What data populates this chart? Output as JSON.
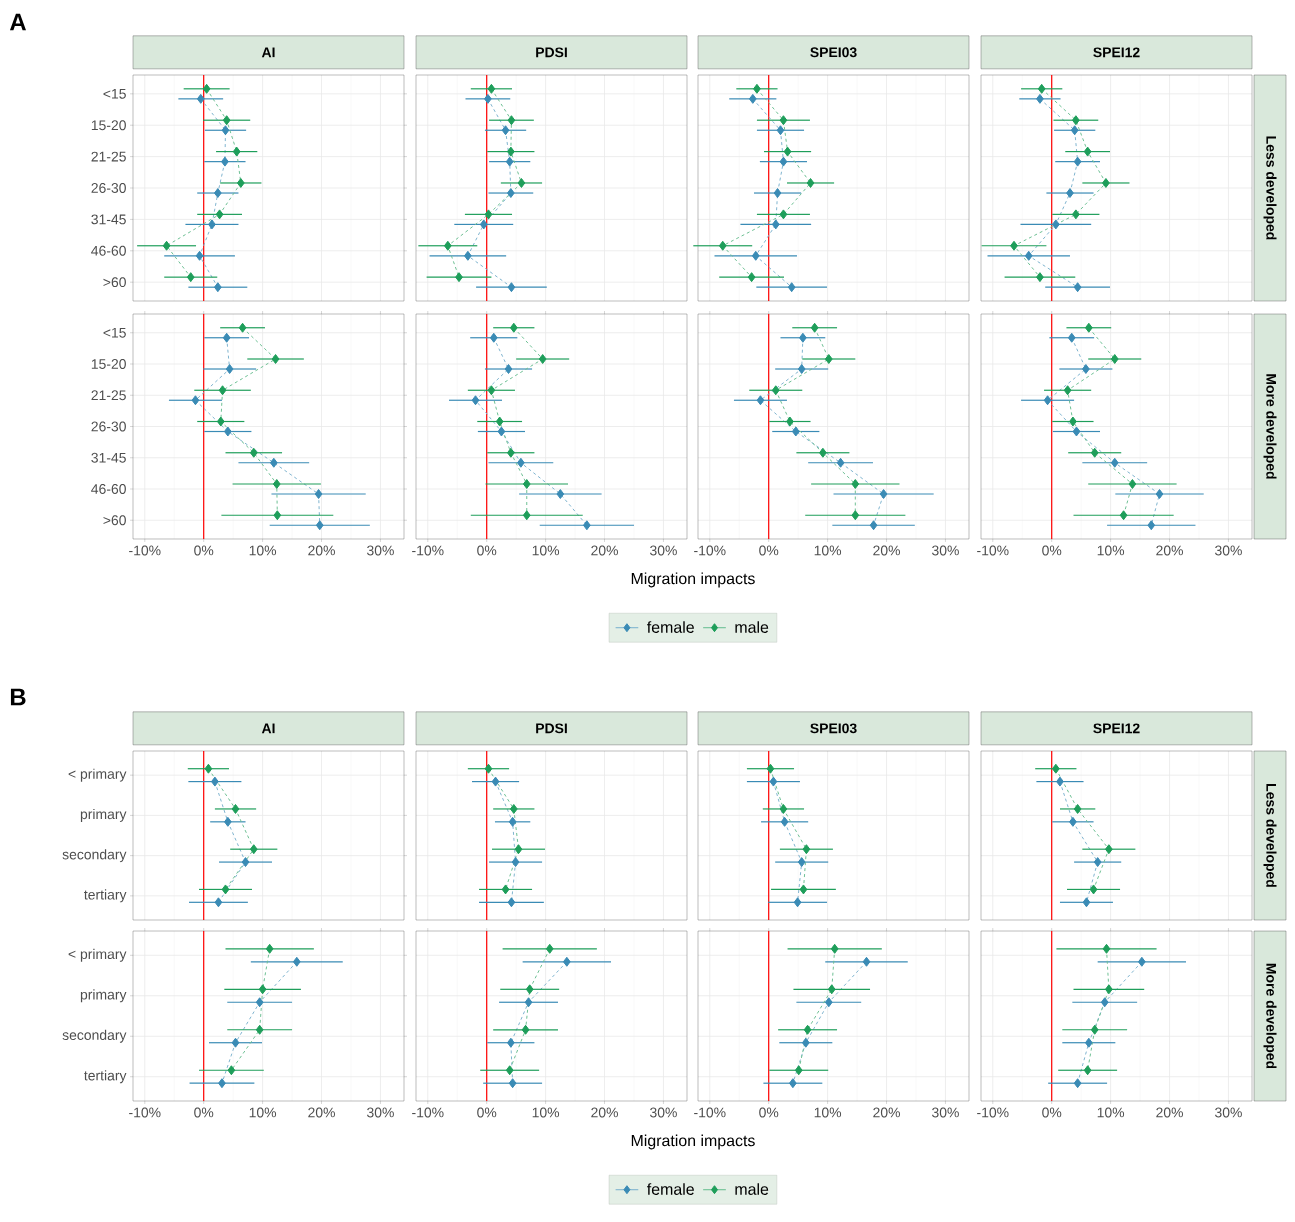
{
  "chart_data": [
    {
      "type": "line",
      "orientation": "horizontal",
      "title": "AI",
      "annotations": [
        "A"
      ],
      "tick_labels": "y",
      "categories": [
        "<15",
        "15-20",
        "21-25",
        "26-30",
        "31-45",
        "46-60",
        ">60"
      ],
      "xlim": [
        -12,
        34
      ],
      "xticks": [
        {
          "value": -10,
          "label": null
        },
        {
          "value": 0,
          "label": null
        },
        {
          "value": 10,
          "label": null
        },
        {
          "value": 20,
          "label": null
        },
        {
          "value": 30,
          "label": null
        }
      ],
      "grid": true,
      "marker": "diamond",
      "line_style": "dashed",
      "ref_lines": [
        {
          "axis": "x",
          "value": 0,
          "color": "#ff0000"
        }
      ],
      "series": [
        {
          "color": "#3a8bb5",
          "values": [
            -0.5,
            3.7,
            3.6,
            2.4,
            1.4,
            -0.7,
            2.4
          ],
          "errors": [
            3.8,
            3.5,
            3.5,
            3.5,
            4.5,
            6,
            5
          ]
        },
        {
          "color": "#1e9e5a",
          "values": [
            0.5,
            3.9,
            5.6,
            6.3,
            2.7,
            -6.3,
            -2.2
          ],
          "errors": [
            3.9,
            4,
            3.5,
            3.5,
            3.8,
            5,
            4.5
          ]
        }
      ]
    },
    {
      "type": "line",
      "orientation": "horizontal",
      "title": "PDSI",
      "tick_labels": false,
      "categories": [
        null,
        null,
        null,
        null,
        null,
        null,
        null
      ],
      "xlim": [
        -12,
        34
      ],
      "xticks": [
        {
          "value": -10,
          "label": null
        },
        {
          "value": 0,
          "label": null
        },
        {
          "value": 10,
          "label": null
        },
        {
          "value": 20,
          "label": null
        },
        {
          "value": 30,
          "label": null
        }
      ],
      "grid": true,
      "marker": "diamond",
      "line_style": "dashed",
      "ref_lines": [
        {
          "axis": "x",
          "value": 0,
          "color": "#ff0000"
        }
      ],
      "series": [
        {
          "color": "#3a8bb5",
          "values": [
            0.2,
            3.2,
            3.9,
            4.1,
            -0.5,
            -3.2,
            4.2
          ],
          "errors": [
            3.8,
            3.5,
            3.5,
            3.8,
            5,
            6.5,
            6
          ]
        },
        {
          "color": "#1e9e5a",
          "values": [
            0.8,
            4.2,
            4.1,
            5.9,
            0.3,
            -6.6,
            -4.7
          ],
          "errors": [
            3.5,
            3.8,
            4,
            3.5,
            4,
            5,
            5.5
          ]
        }
      ]
    },
    {
      "type": "line",
      "orientation": "horizontal",
      "title": "SPEI03",
      "tick_labels": false,
      "categories": [
        null,
        null,
        null,
        null,
        null,
        null,
        null
      ],
      "xlim": [
        -12,
        34
      ],
      "xticks": [
        {
          "value": -10,
          "label": null
        },
        {
          "value": 0,
          "label": null
        },
        {
          "value": 10,
          "label": null
        },
        {
          "value": 20,
          "label": null
        },
        {
          "value": 30,
          "label": null
        }
      ],
      "grid": true,
      "marker": "diamond",
      "line_style": "dashed",
      "ref_lines": [
        {
          "axis": "x",
          "value": 0,
          "color": "#ff0000"
        }
      ],
      "series": [
        {
          "color": "#3a8bb5",
          "values": [
            -2.7,
            2.0,
            2.5,
            1.5,
            1.2,
            -2.2,
            3.9
          ],
          "errors": [
            4,
            4,
            4,
            4,
            6,
            7,
            6
          ]
        },
        {
          "color": "#1e9e5a",
          "values": [
            -2.0,
            2.5,
            3.2,
            7.1,
            2.5,
            -7.8,
            -2.9
          ],
          "errors": [
            3.5,
            4.5,
            4,
            4,
            4.5,
            5,
            5.5
          ]
        }
      ]
    },
    {
      "type": "line",
      "orientation": "horizontal",
      "title": "SPEI12",
      "annotations": [
        "Less developed"
      ],
      "tick_labels": false,
      "categories": [
        null,
        null,
        null,
        null,
        null,
        null,
        null
      ],
      "xlim": [
        -12,
        34
      ],
      "xticks": [
        {
          "value": -10,
          "label": null
        },
        {
          "value": 0,
          "label": null
        },
        {
          "value": 10,
          "label": null
        },
        {
          "value": 20,
          "label": null
        },
        {
          "value": 30,
          "label": null
        }
      ],
      "grid": true,
      "marker": "diamond",
      "line_style": "dashed",
      "ref_lines": [
        {
          "axis": "x",
          "value": 0,
          "color": "#ff0000"
        }
      ],
      "series": [
        {
          "color": "#3a8bb5",
          "values": [
            -2.0,
            3.9,
            4.4,
            3.1,
            0.7,
            -3.9,
            4.4
          ],
          "errors": [
            3.5,
            3.5,
            3.8,
            4,
            6,
            7,
            5.5
          ]
        },
        {
          "color": "#1e9e5a",
          "values": [
            -1.7,
            4.1,
            6.1,
            9.2,
            4.1,
            -6.4,
            -2.0
          ],
          "errors": [
            3.5,
            3.8,
            3.8,
            4,
            4,
            5.5,
            6
          ]
        }
      ]
    },
    {
      "type": "line",
      "orientation": "horizontal",
      "categories": [
        "<15",
        "15-20",
        "21-25",
        "26-30",
        "31-45",
        "46-60",
        ">60"
      ],
      "xlim": [
        -12,
        34
      ],
      "xticks": [
        {
          "value": -10,
          "label": "-10%"
        },
        {
          "value": 0,
          "label": "0%"
        },
        {
          "value": 10,
          "label": "10%"
        },
        {
          "value": 20,
          "label": "20%"
        },
        {
          "value": 30,
          "label": "30%"
        }
      ],
      "grid": true,
      "marker": "diamond",
      "line_style": "dashed",
      "ref_lines": [
        {
          "axis": "x",
          "value": 0,
          "color": "#ff0000"
        }
      ],
      "series": [
        {
          "color": "#3a8bb5",
          "values": [
            3.9,
            4.4,
            -1.4,
            4.1,
            11.9,
            19.5,
            19.7
          ],
          "errors": [
            3.8,
            4.5,
            4.5,
            4,
            6,
            8,
            8.5
          ]
        },
        {
          "color": "#1e9e5a",
          "values": [
            6.6,
            12.2,
            3.2,
            2.9,
            8.5,
            12.4,
            12.5
          ],
          "errors": [
            3.8,
            4.8,
            4.8,
            4,
            4.8,
            7.5,
            9.5
          ]
        }
      ]
    },
    {
      "type": "line",
      "orientation": "horizontal",
      "xlabel": "Migration impacts",
      "legend": "bottom",
      "tick_labels": "x",
      "categories": [
        null,
        null,
        null,
        null,
        null,
        null,
        null
      ],
      "xlim": [
        -12,
        34
      ],
      "xticks": [
        {
          "value": -10,
          "label": "-10%"
        },
        {
          "value": 0,
          "label": "0%"
        },
        {
          "value": 10,
          "label": "10%"
        },
        {
          "value": 20,
          "label": "20%"
        },
        {
          "value": 30,
          "label": "30%"
        }
      ],
      "grid": true,
      "marker": "diamond",
      "line_style": "dashed",
      "ref_lines": [
        {
          "axis": "x",
          "value": 0,
          "color": "#ff0000"
        }
      ],
      "series": [
        {
          "name": "female",
          "color": "#3a8bb5",
          "values": [
            1.2,
            3.7,
            -1.9,
            2.5,
            5.8,
            12.5,
            17.0
          ],
          "errors": [
            4,
            4,
            4.5,
            4,
            5.5,
            7,
            8
          ]
        },
        {
          "name": "male",
          "color": "#1e9e5a",
          "values": [
            4.6,
            9.5,
            0.8,
            2.2,
            4.1,
            6.8,
            6.8
          ],
          "errors": [
            3.5,
            4.5,
            4,
            3.8,
            4,
            7,
            9.5
          ]
        }
      ]
    },
    {
      "type": "line",
      "orientation": "horizontal",
      "tick_labels": "x",
      "categories": [
        null,
        null,
        null,
        null,
        null,
        null,
        null
      ],
      "xlim": [
        -12,
        34
      ],
      "xticks": [
        {
          "value": -10,
          "label": "-10%"
        },
        {
          "value": 0,
          "label": "0%"
        },
        {
          "value": 10,
          "label": "10%"
        },
        {
          "value": 20,
          "label": "20%"
        },
        {
          "value": 30,
          "label": "30%"
        }
      ],
      "grid": true,
      "marker": "diamond",
      "line_style": "dashed",
      "ref_lines": [
        {
          "axis": "x",
          "value": 0,
          "color": "#ff0000"
        }
      ],
      "series": [
        {
          "color": "#3a8bb5",
          "values": [
            5.8,
            5.6,
            -1.4,
            4.6,
            12.2,
            19.5,
            17.8
          ],
          "errors": [
            3.8,
            4.5,
            4.5,
            4,
            5.5,
            8.5,
            7
          ]
        },
        {
          "color": "#1e9e5a",
          "values": [
            7.8,
            10.2,
            1.2,
            3.6,
            9.2,
            14.7,
            14.7
          ],
          "errors": [
            3.8,
            4.5,
            4.5,
            3.5,
            4.5,
            7.5,
            8.5
          ]
        }
      ]
    },
    {
      "type": "line",
      "orientation": "horizontal",
      "annotations": [
        "More developed"
      ],
      "tick_labels": "x",
      "categories": [
        null,
        null,
        null,
        null,
        null,
        null,
        null
      ],
      "xlim": [
        -12,
        34
      ],
      "xticks": [
        {
          "value": -10,
          "label": "-10%"
        },
        {
          "value": 0,
          "label": "0%"
        },
        {
          "value": 10,
          "label": "10%"
        },
        {
          "value": 20,
          "label": "20%"
        },
        {
          "value": 30,
          "label": "30%"
        }
      ],
      "grid": true,
      "marker": "diamond",
      "line_style": "dashed",
      "ref_lines": [
        {
          "axis": "x",
          "value": 0,
          "color": "#ff0000"
        }
      ],
      "series": [
        {
          "color": "#3a8bb5",
          "values": [
            3.4,
            5.8,
            -0.7,
            4.2,
            10.7,
            18.3,
            16.9
          ],
          "errors": [
            3.8,
            4.5,
            4.5,
            4,
            5.5,
            7.5,
            7.5
          ]
        },
        {
          "color": "#1e9e5a",
          "values": [
            6.3,
            10.7,
            2.7,
            3.6,
            7.3,
            13.7,
            12.2
          ],
          "errors": [
            3.8,
            4.5,
            4,
            3.5,
            4.5,
            7.5,
            8.5
          ]
        }
      ]
    },
    {
      "type": "line",
      "orientation": "horizontal",
      "title": "AI",
      "annotations": [
        "B"
      ],
      "tick_labels": "y",
      "categories": [
        "< primary",
        "primary",
        "secondary",
        "tertiary"
      ],
      "xlim": [
        -12,
        34
      ],
      "xticks": [
        {
          "value": -10,
          "label": null
        },
        {
          "value": 0,
          "label": null
        },
        {
          "value": 10,
          "label": null
        },
        {
          "value": 20,
          "label": null
        },
        {
          "value": 30,
          "label": null
        }
      ],
      "grid": true,
      "marker": "diamond",
      "line_style": "dashed",
      "ref_lines": [
        {
          "axis": "x",
          "value": 0,
          "color": "#ff0000"
        }
      ],
      "series": [
        {
          "color": "#3a8bb5",
          "values": [
            1.9,
            4.1,
            7.1,
            2.5
          ],
          "errors": [
            4.5,
            3,
            4.5,
            5
          ]
        },
        {
          "color": "#1e9e5a",
          "values": [
            0.8,
            5.4,
            8.5,
            3.7
          ],
          "errors": [
            3.5,
            3.5,
            4,
            4.5
          ]
        }
      ]
    },
    {
      "type": "line",
      "orientation": "horizontal",
      "title": "PDSI",
      "tick_labels": false,
      "categories": [
        null,
        null,
        null,
        null
      ],
      "xlim": [
        -12,
        34
      ],
      "xticks": [
        {
          "value": -10,
          "label": null
        },
        {
          "value": 0,
          "label": null
        },
        {
          "value": 10,
          "label": null
        },
        {
          "value": 20,
          "label": null
        },
        {
          "value": 30,
          "label": null
        }
      ],
      "grid": true,
      "marker": "diamond",
      "line_style": "dashed",
      "ref_lines": [
        {
          "axis": "x",
          "value": 0,
          "color": "#ff0000"
        }
      ],
      "series": [
        {
          "color": "#3a8bb5",
          "values": [
            1.5,
            4.4,
            4.9,
            4.2
          ],
          "errors": [
            4,
            3,
            4.5,
            5.5
          ]
        },
        {
          "color": "#1e9e5a",
          "values": [
            0.3,
            4.6,
            5.4,
            3.2
          ],
          "errors": [
            3.5,
            3.5,
            4.5,
            4.5
          ]
        }
      ]
    },
    {
      "type": "line",
      "orientation": "horizontal",
      "title": "SPEI03",
      "tick_labels": false,
      "categories": [
        null,
        null,
        null,
        null
      ],
      "xlim": [
        -12,
        34
      ],
      "xticks": [
        {
          "value": -10,
          "label": null
        },
        {
          "value": 0,
          "label": null
        },
        {
          "value": 10,
          "label": null
        },
        {
          "value": 20,
          "label": null
        },
        {
          "value": 30,
          "label": null
        }
      ],
      "grid": true,
      "marker": "diamond",
      "line_style": "dashed",
      "ref_lines": [
        {
          "axis": "x",
          "value": 0,
          "color": "#ff0000"
        }
      ],
      "series": [
        {
          "color": "#3a8bb5",
          "values": [
            0.8,
            2.7,
            5.6,
            4.9
          ],
          "errors": [
            4.5,
            4,
            4.5,
            5
          ]
        },
        {
          "color": "#1e9e5a",
          "values": [
            0.3,
            2.5,
            6.4,
            5.9
          ],
          "errors": [
            4,
            3.5,
            4.5,
            5.5
          ]
        }
      ]
    },
    {
      "type": "line",
      "orientation": "horizontal",
      "title": "SPEI12",
      "annotations": [
        "Less developed"
      ],
      "tick_labels": false,
      "categories": [
        null,
        null,
        null,
        null
      ],
      "xlim": [
        -12,
        34
      ],
      "xticks": [
        {
          "value": -10,
          "label": null
        },
        {
          "value": 0,
          "label": null
        },
        {
          "value": 10,
          "label": null
        },
        {
          "value": 20,
          "label": null
        },
        {
          "value": 30,
          "label": null
        }
      ],
      "grid": true,
      "marker": "diamond",
      "line_style": "dashed",
      "ref_lines": [
        {
          "axis": "x",
          "value": 0,
          "color": "#ff0000"
        }
      ],
      "series": [
        {
          "color": "#3a8bb5",
          "values": [
            1.4,
            3.6,
            7.8,
            5.9
          ],
          "errors": [
            4,
            3.5,
            4,
            4.5
          ]
        },
        {
          "color": "#1e9e5a",
          "values": [
            0.7,
            4.4,
            9.7,
            7.1
          ],
          "errors": [
            3.5,
            3,
            4.5,
            4.5
          ]
        }
      ]
    },
    {
      "type": "line",
      "orientation": "horizontal",
      "categories": [
        "< primary",
        "primary",
        "secondary",
        "tertiary"
      ],
      "xlim": [
        -12,
        34
      ],
      "xticks": [
        {
          "value": -10,
          "label": "-10%"
        },
        {
          "value": 0,
          "label": "0%"
        },
        {
          "value": 10,
          "label": "10%"
        },
        {
          "value": 20,
          "label": "20%"
        },
        {
          "value": 30,
          "label": "30%"
        }
      ],
      "grid": true,
      "marker": "diamond",
      "line_style": "dashed",
      "ref_lines": [
        {
          "axis": "x",
          "value": 0,
          "color": "#ff0000"
        }
      ],
      "series": [
        {
          "color": "#3a8bb5",
          "values": [
            15.8,
            9.5,
            5.4,
            3.1
          ],
          "errors": [
            7.8,
            5.5,
            4.5,
            5.5
          ]
        },
        {
          "color": "#1e9e5a",
          "values": [
            11.2,
            10.0,
            9.5,
            4.7
          ],
          "errors": [
            7.5,
            6.5,
            5.5,
            5.5
          ]
        }
      ]
    },
    {
      "type": "line",
      "orientation": "horizontal",
      "xlabel": "Migration impacts",
      "legend": "bottom",
      "tick_labels": "x",
      "categories": [
        null,
        null,
        null,
        null
      ],
      "xlim": [
        -12,
        34
      ],
      "xticks": [
        {
          "value": -10,
          "label": "-10%"
        },
        {
          "value": 0,
          "label": "0%"
        },
        {
          "value": 10,
          "label": "10%"
        },
        {
          "value": 20,
          "label": "20%"
        },
        {
          "value": 30,
          "label": "30%"
        }
      ],
      "grid": true,
      "marker": "diamond",
      "line_style": "dashed",
      "ref_lines": [
        {
          "axis": "x",
          "value": 0,
          "color": "#ff0000"
        }
      ],
      "series": [
        {
          "name": "female",
          "color": "#3a8bb5",
          "values": [
            13.6,
            7.1,
            4.1,
            4.4
          ],
          "errors": [
            7.5,
            5,
            4,
            5
          ]
        },
        {
          "name": "male",
          "color": "#1e9e5a",
          "values": [
            10.7,
            7.3,
            6.6,
            3.9
          ],
          "errors": [
            8,
            5,
            5.5,
            5
          ]
        }
      ]
    },
    {
      "type": "line",
      "orientation": "horizontal",
      "tick_labels": "x",
      "categories": [
        null,
        null,
        null,
        null
      ],
      "xlim": [
        -12,
        34
      ],
      "xticks": [
        {
          "value": -10,
          "label": "-10%"
        },
        {
          "value": 0,
          "label": "0%"
        },
        {
          "value": 10,
          "label": "10%"
        },
        {
          "value": 20,
          "label": "20%"
        },
        {
          "value": 30,
          "label": "30%"
        }
      ],
      "grid": true,
      "marker": "diamond",
      "line_style": "dashed",
      "ref_lines": [
        {
          "axis": "x",
          "value": 0,
          "color": "#ff0000"
        }
      ],
      "series": [
        {
          "color": "#3a8bb5",
          "values": [
            16.6,
            10.2,
            6.3,
            4.1
          ],
          "errors": [
            7,
            5.5,
            4.5,
            5
          ]
        },
        {
          "color": "#1e9e5a",
          "values": [
            11.2,
            10.7,
            6.6,
            5.1
          ],
          "errors": [
            8,
            6.5,
            5,
            5
          ]
        }
      ]
    },
    {
      "type": "line",
      "orientation": "horizontal",
      "annotations": [
        "More developed"
      ],
      "tick_labels": "x",
      "categories": [
        null,
        null,
        null,
        null
      ],
      "xlim": [
        -12,
        34
      ],
      "xticks": [
        {
          "value": -10,
          "label": "-10%"
        },
        {
          "value": 0,
          "label": "0%"
        },
        {
          "value": 10,
          "label": "10%"
        },
        {
          "value": 20,
          "label": "20%"
        },
        {
          "value": 30,
          "label": "30%"
        }
      ],
      "grid": true,
      "marker": "diamond",
      "line_style": "dashed",
      "ref_lines": [
        {
          "axis": "x",
          "value": 0,
          "color": "#ff0000"
        }
      ],
      "series": [
        {
          "color": "#3a8bb5",
          "values": [
            15.3,
            9.0,
            6.3,
            4.4
          ],
          "errors": [
            7.5,
            5.5,
            4.5,
            5
          ]
        },
        {
          "color": "#1e9e5a",
          "values": [
            9.3,
            9.7,
            7.3,
            6.1
          ],
          "errors": [
            8.5,
            6,
            5.5,
            5
          ]
        }
      ]
    }
  ]
}
